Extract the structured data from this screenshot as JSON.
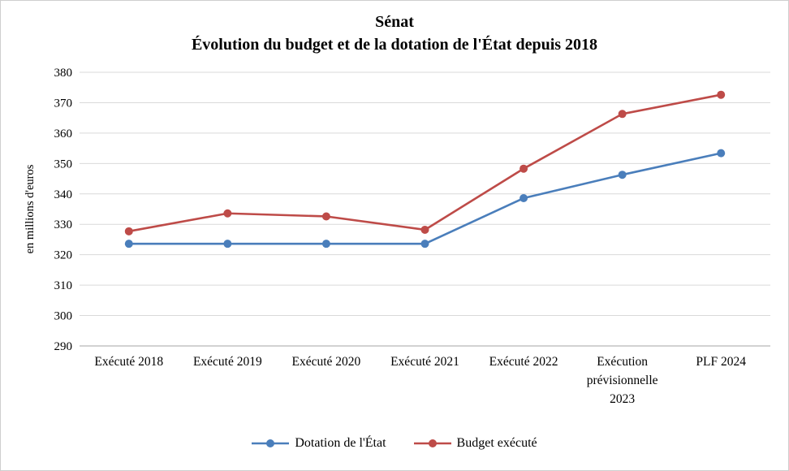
{
  "title_line1": "Sénat",
  "title_line2": "Évolution du budget et de la dotation de l'État depuis 2018",
  "chart_data": {
    "type": "line",
    "title": "Sénat — Évolution du budget et de la dotation de l'État depuis 2018",
    "ylabel": "en millions d'euros",
    "ylim": [
      290,
      380
    ],
    "yticks": [
      290,
      300,
      310,
      320,
      330,
      340,
      350,
      360,
      370,
      380
    ],
    "grid": true,
    "legend_position": "bottom",
    "categories": [
      "Exécuté 2018",
      "Exécuté 2019",
      "Exécuté 2020",
      "Exécuté 2021",
      "Exécuté 2022",
      "Exécution\nprévisionnelle\n2023",
      "PLF 2024"
    ],
    "series": [
      {
        "name": "Dotation de l'État",
        "color": "#4A7EBB",
        "values": [
          323.6,
          323.6,
          323.6,
          323.6,
          338.6,
          346.3,
          353.4
        ]
      },
      {
        "name": "Budget exécuté",
        "color": "#BE4B48",
        "values": [
          327.7,
          333.6,
          332.6,
          328.2,
          348.3,
          366.3,
          372.6
        ]
      }
    ]
  }
}
